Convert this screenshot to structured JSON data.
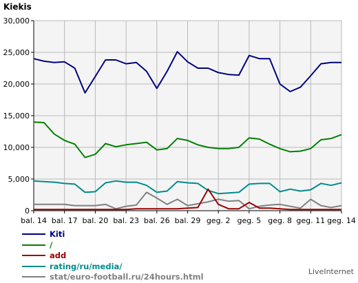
{
  "page": {
    "title": "Kiekis",
    "credit": "LiveInternet"
  },
  "chart_data": {
    "type": "line",
    "title": "Kiekis",
    "xlabel": "",
    "ylabel": "",
    "ylim": [
      0,
      30000
    ],
    "yticks": [
      "0",
      "5,000",
      "10,000",
      "15,000",
      "20,000",
      "25,000",
      "30,000"
    ],
    "ytick_values": [
      0,
      5000,
      10000,
      15000,
      20000,
      25000,
      30000
    ],
    "grid": true,
    "background": "#f4f4f4",
    "gridColor": "#b8b8b8",
    "categories": [
      "bal. 14",
      "bal. 15",
      "bal. 16",
      "bal. 17",
      "bal. 18",
      "bal. 19",
      "bal. 20",
      "bal. 21",
      "bal. 22",
      "bal. 23",
      "bal. 24",
      "bal. 25",
      "bal. 26",
      "bal. 27",
      "bal. 28",
      "bal. 29",
      "bal. 30",
      "geg. 1",
      "geg. 2",
      "geg. 3",
      "geg. 4",
      "geg. 5",
      "geg. 6",
      "geg. 7",
      "geg. 8",
      "geg. 9",
      "geg. 10",
      "geg. 11",
      "geg. 12",
      "geg. 13",
      "geg. 14"
    ],
    "xtick_labels": [
      "bal. 14",
      "bal. 17",
      "bal. 20",
      "bal. 23",
      "bal. 26",
      "bal. 29",
      "geg. 2",
      "geg. 5",
      "geg. 8",
      "geg. 11",
      "geg. 14"
    ],
    "xtick_indices": [
      0,
      3,
      6,
      9,
      12,
      15,
      18,
      21,
      24,
      27,
      30
    ],
    "series": [
      {
        "name": "Kiti",
        "color": "#000080",
        "values": [
          24000,
          23600,
          23400,
          23500,
          22500,
          18600,
          21200,
          23800,
          23800,
          23200,
          23400,
          22000,
          19300,
          22000,
          25100,
          23500,
          22500,
          22500,
          21800,
          21500,
          21400,
          24500,
          24000,
          24000,
          20000,
          18800,
          19500,
          21300,
          23200,
          23400,
          23400
        ]
      },
      {
        "name": "/",
        "color": "#008000",
        "values": [
          14000,
          13900,
          12100,
          11100,
          10500,
          8400,
          8900,
          10600,
          10100,
          10400,
          10600,
          10800,
          9600,
          9800,
          11400,
          11100,
          10400,
          10000,
          9800,
          9800,
          10000,
          11500,
          11300,
          10500,
          9800,
          9300,
          9400,
          9800,
          11200,
          11400,
          12000
        ]
      },
      {
        "name": "add",
        "color": "#990000",
        "values": [
          200,
          200,
          200,
          200,
          200,
          200,
          200,
          200,
          200,
          200,
          300,
          300,
          300,
          300,
          300,
          400,
          500,
          3400,
          1000,
          300,
          300,
          1300,
          400,
          400,
          300,
          200,
          200,
          200,
          200,
          200,
          200
        ]
      },
      {
        "name": "rating/ru/media/",
        "color": "#008b8b",
        "values": [
          4700,
          4600,
          4500,
          4300,
          4200,
          2900,
          3000,
          4400,
          4700,
          4500,
          4500,
          4000,
          2900,
          3100,
          4600,
          4400,
          4300,
          3200,
          2700,
          2800,
          2900,
          4200,
          4300,
          4300,
          3000,
          3400,
          3100,
          3300,
          4300,
          4000,
          4400
        ]
      },
      {
        "name": "stat/euro-football.ru/24hours.html",
        "color": "#808080",
        "values": [
          1000,
          1000,
          1000,
          1000,
          800,
          800,
          800,
          1000,
          300,
          700,
          900,
          2900,
          2000,
          1000,
          1800,
          800,
          1100,
          1400,
          1800,
          1500,
          1600,
          300,
          700,
          900,
          1000,
          700,
          400,
          1800,
          800,
          500,
          800
        ]
      }
    ]
  }
}
